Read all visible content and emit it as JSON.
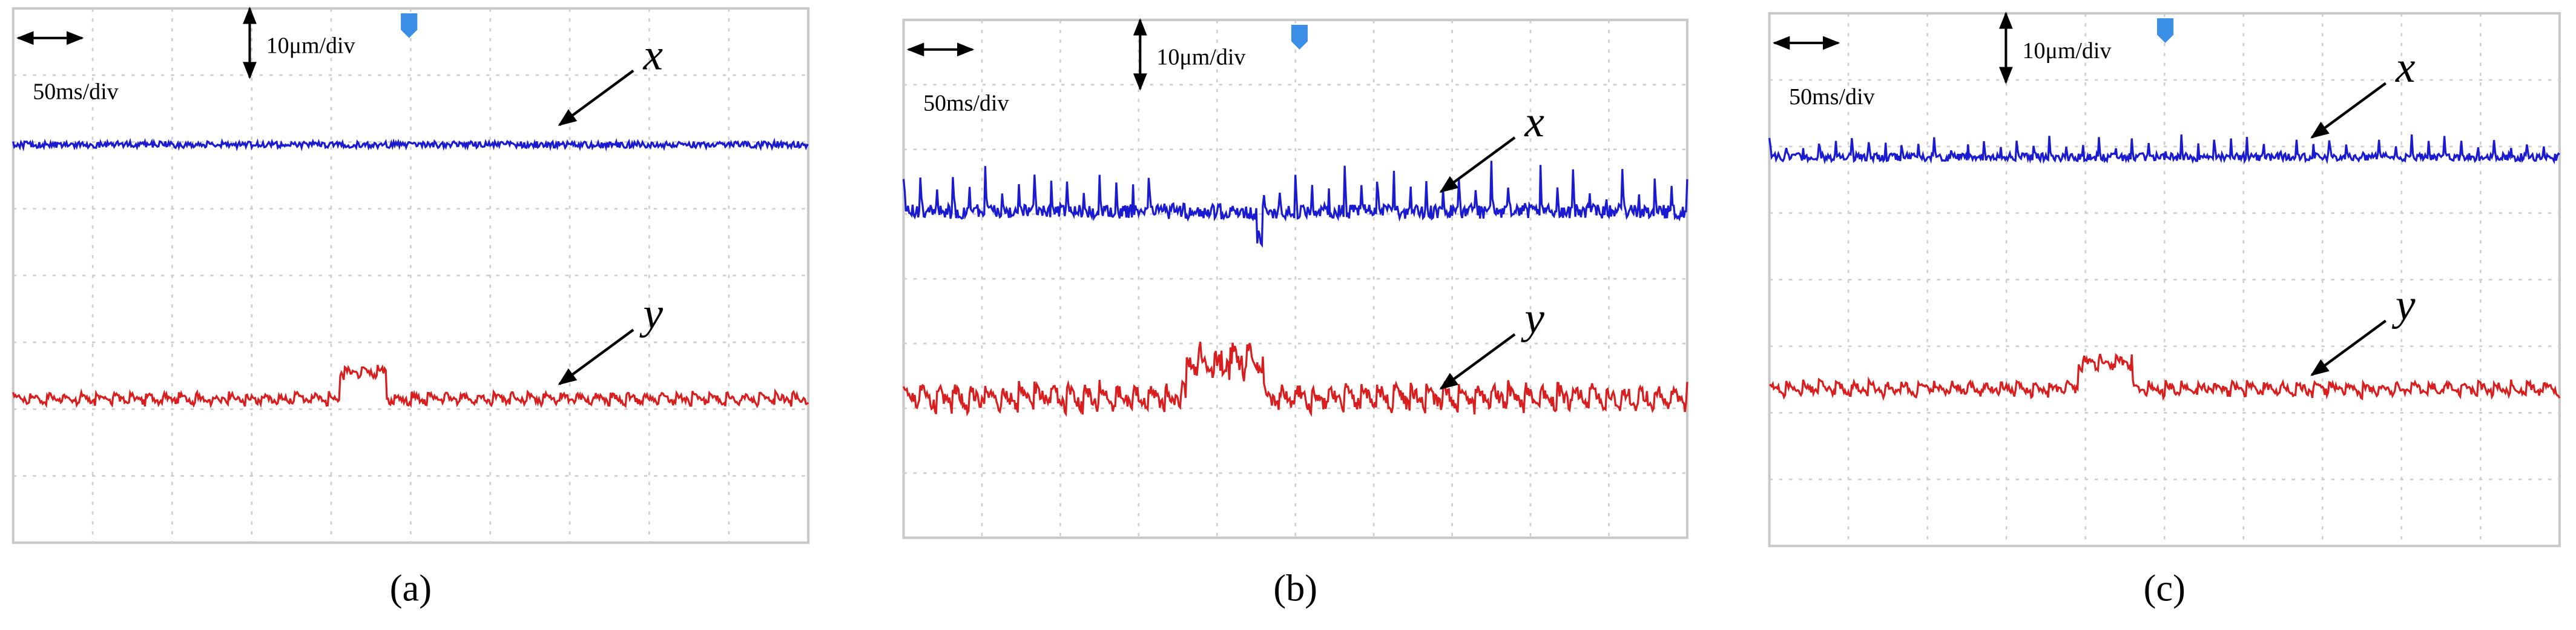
{
  "panels": [
    {
      "vertical_scale": "10μm/div",
      "horizontal_scale": "50ms/div",
      "trace_labels": [
        "x",
        "y"
      ],
      "caption": "(a)"
    },
    {
      "vertical_scale": "10μm/div",
      "horizontal_scale": "50ms/div",
      "trace_labels": [
        "x",
        "y"
      ],
      "caption": "(b)"
    },
    {
      "vertical_scale": "10μm/div",
      "horizontal_scale": "50ms/div",
      "trace_labels": [
        "x",
        "y"
      ],
      "caption": "(c)"
    }
  ]
}
